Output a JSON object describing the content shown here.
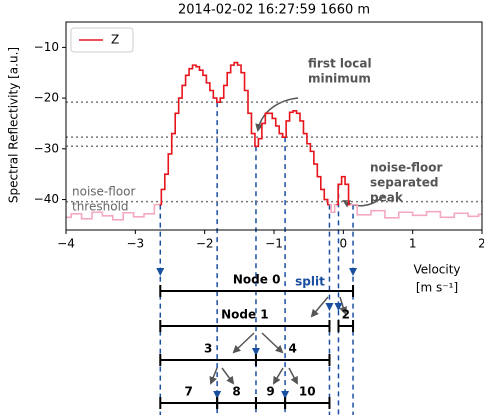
{
  "chart_data": {
    "type": "line",
    "title": "2014-02-02 16:27:59  1660 m",
    "ylabel": "Spectral Reflectivity [a.u.]",
    "xlabel": [
      "Velocity",
      "[m s⁻¹]"
    ],
    "xlim": [
      -4,
      2
    ],
    "ylim": [
      -46,
      -5
    ],
    "xticks": [
      {
        "value": -4,
        "label": "−4"
      },
      {
        "value": -3,
        "label": "−3"
      },
      {
        "value": -2,
        "label": "−2"
      },
      {
        "value": -1,
        "label": "−1"
      },
      0,
      1,
      2
    ],
    "yticks": [
      {
        "value": -40,
        "label": "−40"
      },
      {
        "value": -30,
        "label": "−30"
      },
      {
        "value": -20,
        "label": "−20"
      },
      {
        "value": -10,
        "label": "−10"
      }
    ],
    "legend": "upper left",
    "hlines": [
      -20.8,
      -27.7,
      -29.5,
      -40.4
    ],
    "series": [
      {
        "name": "Z",
        "color": "#e8141c",
        "x": [
          -2.65,
          -2.6,
          -2.55,
          -2.5,
          -2.45,
          -2.4,
          -2.35,
          -2.3,
          -2.25,
          -2.2,
          -2.15,
          -2.1,
          -2.05,
          -2.0,
          -1.95,
          -1.9,
          -1.85,
          -1.8,
          -1.75,
          -1.7,
          -1.65,
          -1.6,
          -1.55,
          -1.5,
          -1.45,
          -1.4,
          -1.35,
          -1.3,
          -1.25,
          -1.2,
          -1.15,
          -1.1,
          -1.05,
          -1.0,
          -0.95,
          -0.9,
          -0.85,
          -0.8,
          -0.75,
          -0.7,
          -0.65,
          -0.6,
          -0.55,
          -0.5,
          -0.45,
          -0.4,
          -0.35,
          -0.3,
          -0.25,
          -0.2,
          -0.15,
          -0.1,
          -0.05,
          0.0,
          0.05,
          0.1
        ],
        "values": [
          -41,
          -38,
          -35,
          -31,
          -27,
          -23,
          -20,
          -17.5,
          -15.5,
          -14.2,
          -13.5,
          -13.8,
          -14.5,
          -15.5,
          -17,
          -18.5,
          -20,
          -20.8,
          -20,
          -17.5,
          -15,
          -13.5,
          -13,
          -13.5,
          -15,
          -18.5,
          -23,
          -27,
          -29.5,
          -28,
          -25,
          -23,
          -23,
          -24,
          -25.5,
          -27,
          -27.7,
          -24.5,
          -22.8,
          -22.5,
          -23,
          -24.5,
          -27,
          -29,
          -30.5,
          -33,
          -35.5,
          -38,
          -40,
          -41,
          null,
          -41,
          -37,
          -35.5,
          -37,
          -41
        ]
      },
      {
        "color": "#f4a9c0",
        "x": [
          -4,
          -3.85,
          -3.7,
          -3.55,
          -3.4,
          -3.25,
          -3.1,
          -2.95,
          -2.8,
          -2.65,
          -1.5,
          -0.2,
          -0.15,
          -0.1,
          0.0,
          0.1,
          0.3,
          0.5,
          0.7,
          0.9,
          1.1,
          1.3,
          1.5,
          1.7,
          1.9,
          2.0
        ],
        "values": [
          -43.5,
          -42.8,
          -43.8,
          -42.5,
          -43.2,
          -44,
          -42.6,
          -43.4,
          -42.8,
          -41,
          null,
          -41,
          -42.5,
          -41,
          null,
          -41,
          -43,
          -42.2,
          -43.6,
          -42.5,
          -43.1,
          -42.4,
          -43.5,
          -42.7,
          -43.3,
          -42.9
        ]
      }
    ],
    "annotations": [
      [
        "first local",
        "minimum"
      ],
      [
        "noise-floor",
        "separated",
        "peak"
      ],
      [
        "noise-floor",
        "threshold"
      ]
    ],
    "tree": {
      "split_label": "split",
      "boundaries": [
        -2.64,
        -1.82,
        -1.26,
        -0.84,
        -0.2,
        -0.07,
        0.14
      ],
      "levels": [
        [
          {
            "label": "Node 0",
            "range": [
              -2.64,
              0.14
            ]
          }
        ],
        [
          {
            "label": "Node 1",
            "range": [
              -2.64,
              -0.2
            ]
          },
          {
            "label": "2",
            "range": [
              -0.07,
              0.14
            ]
          }
        ],
        [
          {
            "label": "3",
            "range": [
              -2.64,
              -1.26
            ]
          },
          {
            "label": "4",
            "range": [
              -1.26,
              -0.2
            ]
          }
        ],
        [
          {
            "label": "7",
            "range": [
              -2.64,
              -1.82
            ]
          },
          {
            "label": "8",
            "range": [
              -1.82,
              -1.26
            ]
          },
          {
            "label": "9",
            "range": [
              -1.26,
              -0.84
            ]
          },
          {
            "label": "10",
            "range": [
              -0.84,
              -0.2
            ]
          }
        ]
      ]
    }
  }
}
